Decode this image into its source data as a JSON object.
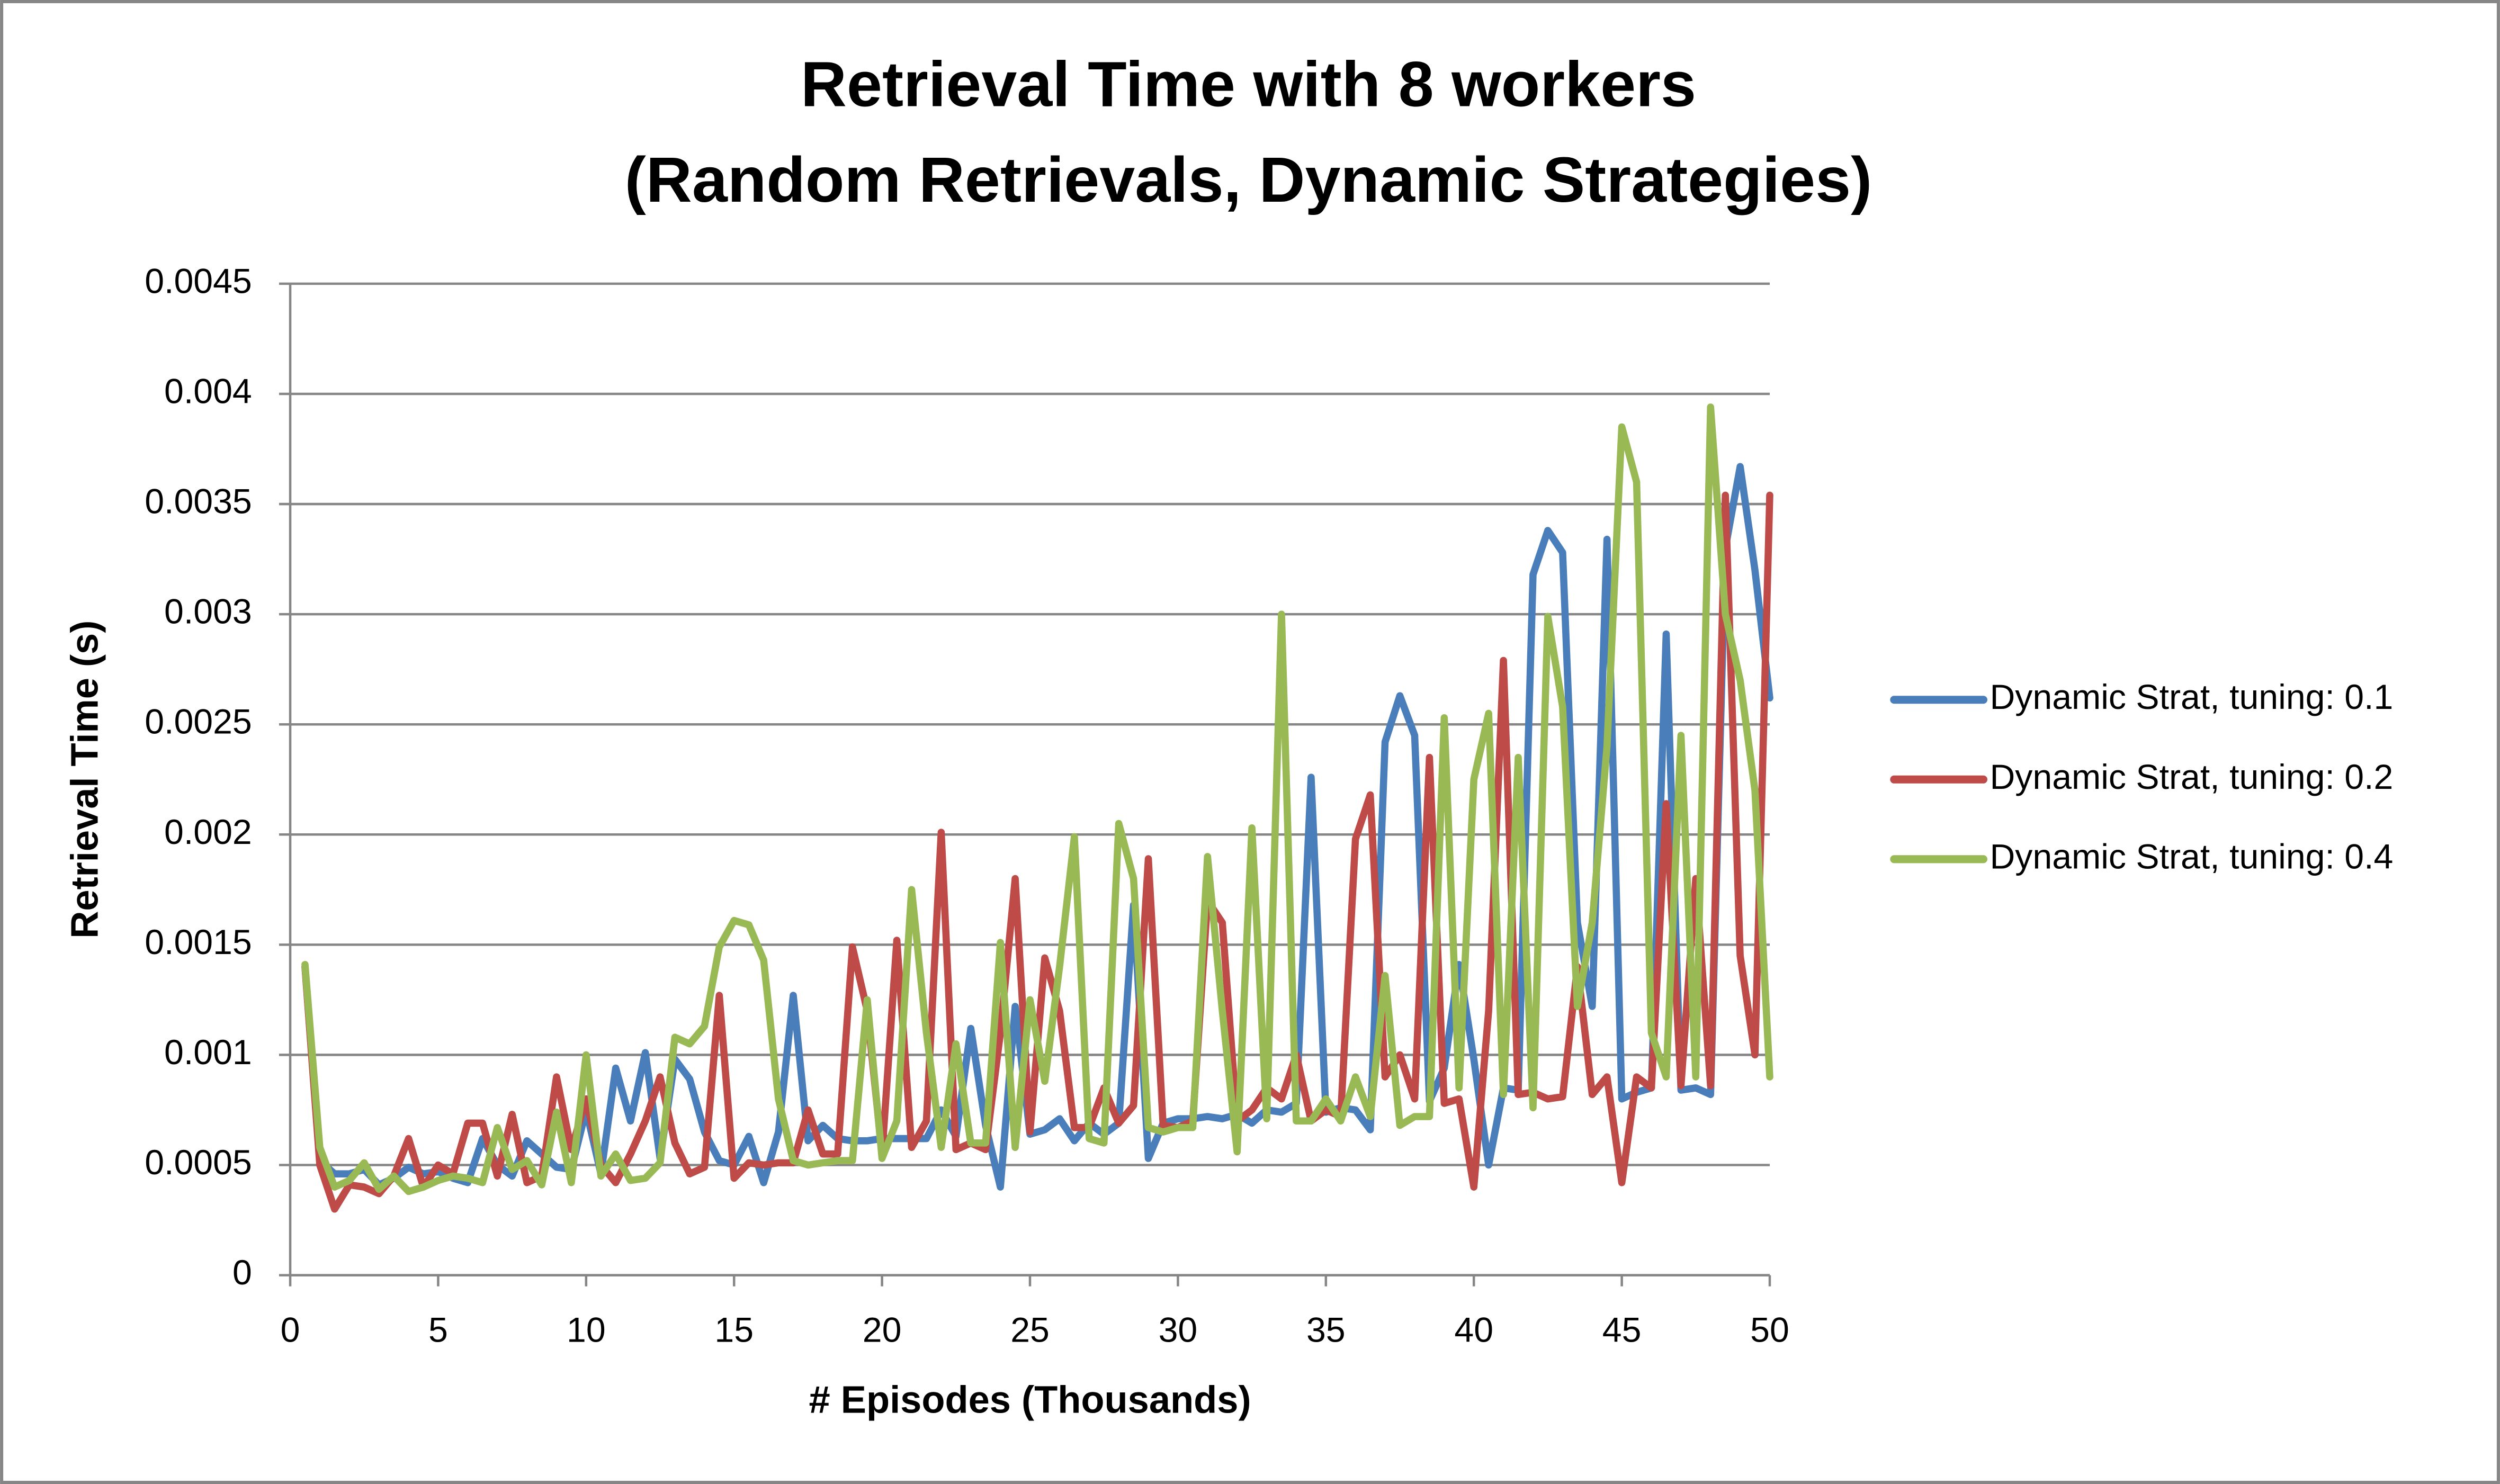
{
  "chart_data": {
    "type": "line",
    "title": [
      "Retrieval Time with 8 workers",
      "(Random Retrievals, Dynamic Strategies)"
    ],
    "x_label": "# Episodes (Thousands)",
    "y_label": "Retrieval Time (s)",
    "xlim": [
      0,
      50
    ],
    "xticks": [
      0,
      5,
      10,
      15,
      20,
      25,
      30,
      35,
      40,
      45,
      50
    ],
    "ylim": [
      0,
      0.0045
    ],
    "yticks": [
      0,
      0.0005,
      0.001,
      0.0015,
      0.002,
      0.0025,
      0.003,
      0.0035,
      0.004,
      0.0045
    ],
    "grid": true,
    "legend": "right",
    "x": [
      0.5,
      1,
      1.5,
      2,
      2.5,
      3,
      3.5,
      4,
      4.5,
      5,
      5.5,
      6,
      6.5,
      7,
      7.5,
      8,
      8.5,
      9,
      9.5,
      10,
      10.5,
      11,
      11.5,
      12,
      12.5,
      13,
      13.5,
      14,
      14.5,
      15,
      15.5,
      16,
      16.5,
      17,
      17.5,
      18,
      18.5,
      19,
      19.5,
      20,
      20.5,
      21,
      21.5,
      22,
      22.5,
      23,
      23.5,
      24,
      24.5,
      25,
      25.5,
      26,
      26.5,
      27,
      27.5,
      28,
      28.5,
      29,
      29.5,
      30,
      30.5,
      31,
      31.5,
      32,
      32.5,
      33,
      33.5,
      34,
      34.5,
      35,
      35.5,
      36,
      36.5,
      37,
      37.5,
      38,
      38.5,
      39,
      39.5,
      40,
      40.5,
      41,
      41.5,
      42,
      42.5,
      43,
      43.5,
      44,
      44.5,
      45,
      45.5,
      46,
      46.5,
      47,
      47.5,
      48,
      48.5,
      49,
      49.5,
      50
    ],
    "series": [
      {
        "name": "Dynamic Strat, tuning: 0.1",
        "color": "#4a7ebb",
        "values": [
          0.0014,
          0.00052,
          0.00046,
          0.00046,
          0.00048,
          0.00041,
          0.00044,
          0.00049,
          0.00046,
          0.00047,
          0.00044,
          0.00042,
          0.00062,
          0.0005,
          0.00045,
          0.00061,
          0.00055,
          0.00049,
          0.00048,
          0.00075,
          0.00046,
          0.00094,
          0.0007,
          0.00101,
          0.00053,
          0.00098,
          0.00089,
          0.00065,
          0.00052,
          0.0005,
          0.00063,
          0.00042,
          0.00065,
          0.00127,
          0.00061,
          0.00068,
          0.00062,
          0.00061,
          0.00061,
          0.00062,
          0.00062,
          0.00062,
          0.00062,
          0.00075,
          0.00063,
          0.00112,
          0.00068,
          0.0004,
          0.00122,
          0.00064,
          0.00066,
          0.00071,
          0.00061,
          0.00069,
          0.00064,
          0.00069,
          0.00168,
          0.00053,
          0.00069,
          0.00071,
          0.00071,
          0.00072,
          0.00071,
          0.00073,
          0.00069,
          0.00075,
          0.00074,
          0.00078,
          0.00226,
          0.00074,
          0.00076,
          0.00075,
          0.00066,
          0.00242,
          0.00263,
          0.00245,
          0.00079,
          0.00094,
          0.00141,
          0.00098,
          0.0005,
          0.00085,
          0.00084,
          0.00318,
          0.00338,
          0.00328,
          0.0016,
          0.00122,
          0.00334,
          0.0008,
          0.00083,
          0.00085,
          0.00291,
          0.00084,
          0.00085,
          0.00082,
          0.0033,
          0.00367,
          0.0032,
          0.00262
        ]
      },
      {
        "name": "Dynamic Strat, tuning: 0.2",
        "color": "#be4b48",
        "values": [
          0.0014,
          0.0005,
          0.0003,
          0.00041,
          0.0004,
          0.00037,
          0.00045,
          0.00062,
          0.0004,
          0.0005,
          0.00046,
          0.00069,
          0.00069,
          0.00045,
          0.00073,
          0.00042,
          0.00045,
          0.0009,
          0.00057,
          0.0008,
          0.0005,
          0.00042,
          0.00055,
          0.0007,
          0.0009,
          0.0006,
          0.00046,
          0.00049,
          0.00127,
          0.00044,
          0.00051,
          0.0005,
          0.00051,
          0.00051,
          0.00075,
          0.00055,
          0.00055,
          0.00149,
          0.0012,
          0.00055,
          0.00152,
          0.00058,
          0.0007,
          0.00201,
          0.00057,
          0.0006,
          0.00057,
          0.0011,
          0.0018,
          0.00065,
          0.00144,
          0.0012,
          0.00067,
          0.00067,
          0.00085,
          0.00069,
          0.00077,
          0.00189,
          0.00068,
          0.00067,
          0.0007,
          0.0017,
          0.0016,
          0.0007,
          0.00075,
          0.00085,
          0.0008,
          0.001,
          0.0007,
          0.00075,
          0.00072,
          0.00198,
          0.00218,
          0.0009,
          0.001,
          0.0008,
          0.00235,
          0.00078,
          0.0008,
          0.0004,
          0.0012,
          0.00279,
          0.00082,
          0.00083,
          0.0008,
          0.00081,
          0.0014,
          0.00082,
          0.0009,
          0.00042,
          0.0009,
          0.00085,
          0.00214,
          0.00086,
          0.0018,
          0.00086,
          0.00354,
          0.00145,
          0.001,
          0.00354
        ]
      },
      {
        "name": "Dynamic Strat, tuning: 0.4",
        "color": "#98b954",
        "values": [
          0.00141,
          0.00058,
          0.0004,
          0.00043,
          0.00051,
          0.00039,
          0.00045,
          0.00038,
          0.0004,
          0.00043,
          0.00045,
          0.00044,
          0.00042,
          0.00067,
          0.00048,
          0.00052,
          0.00041,
          0.00074,
          0.00042,
          0.001,
          0.00045,
          0.00055,
          0.00043,
          0.00044,
          0.00051,
          0.00108,
          0.00105,
          0.00113,
          0.00149,
          0.00161,
          0.00159,
          0.00143,
          0.0008,
          0.00052,
          0.0005,
          0.00051,
          0.00052,
          0.00052,
          0.00125,
          0.00053,
          0.0007,
          0.00175,
          0.0011,
          0.00058,
          0.00105,
          0.0006,
          0.0006,
          0.00151,
          0.00058,
          0.00125,
          0.00088,
          0.0014,
          0.00199,
          0.00062,
          0.0006,
          0.00205,
          0.0018,
          0.00067,
          0.00065,
          0.00067,
          0.00067,
          0.0019,
          0.0012,
          0.00056,
          0.00203,
          0.00071,
          0.003,
          0.0007,
          0.0007,
          0.0008,
          0.0007,
          0.0009,
          0.00072,
          0.00136,
          0.00068,
          0.00072,
          0.00072,
          0.00253,
          0.00085,
          0.00225,
          0.00255,
          0.00082,
          0.00235,
          0.00076,
          0.00299,
          0.00258,
          0.00122,
          0.0016,
          0.0024,
          0.00385,
          0.0036,
          0.0011,
          0.0009,
          0.00245,
          0.0009,
          0.00394,
          0.003,
          0.0027,
          0.0022,
          0.0009
        ]
      }
    ]
  }
}
